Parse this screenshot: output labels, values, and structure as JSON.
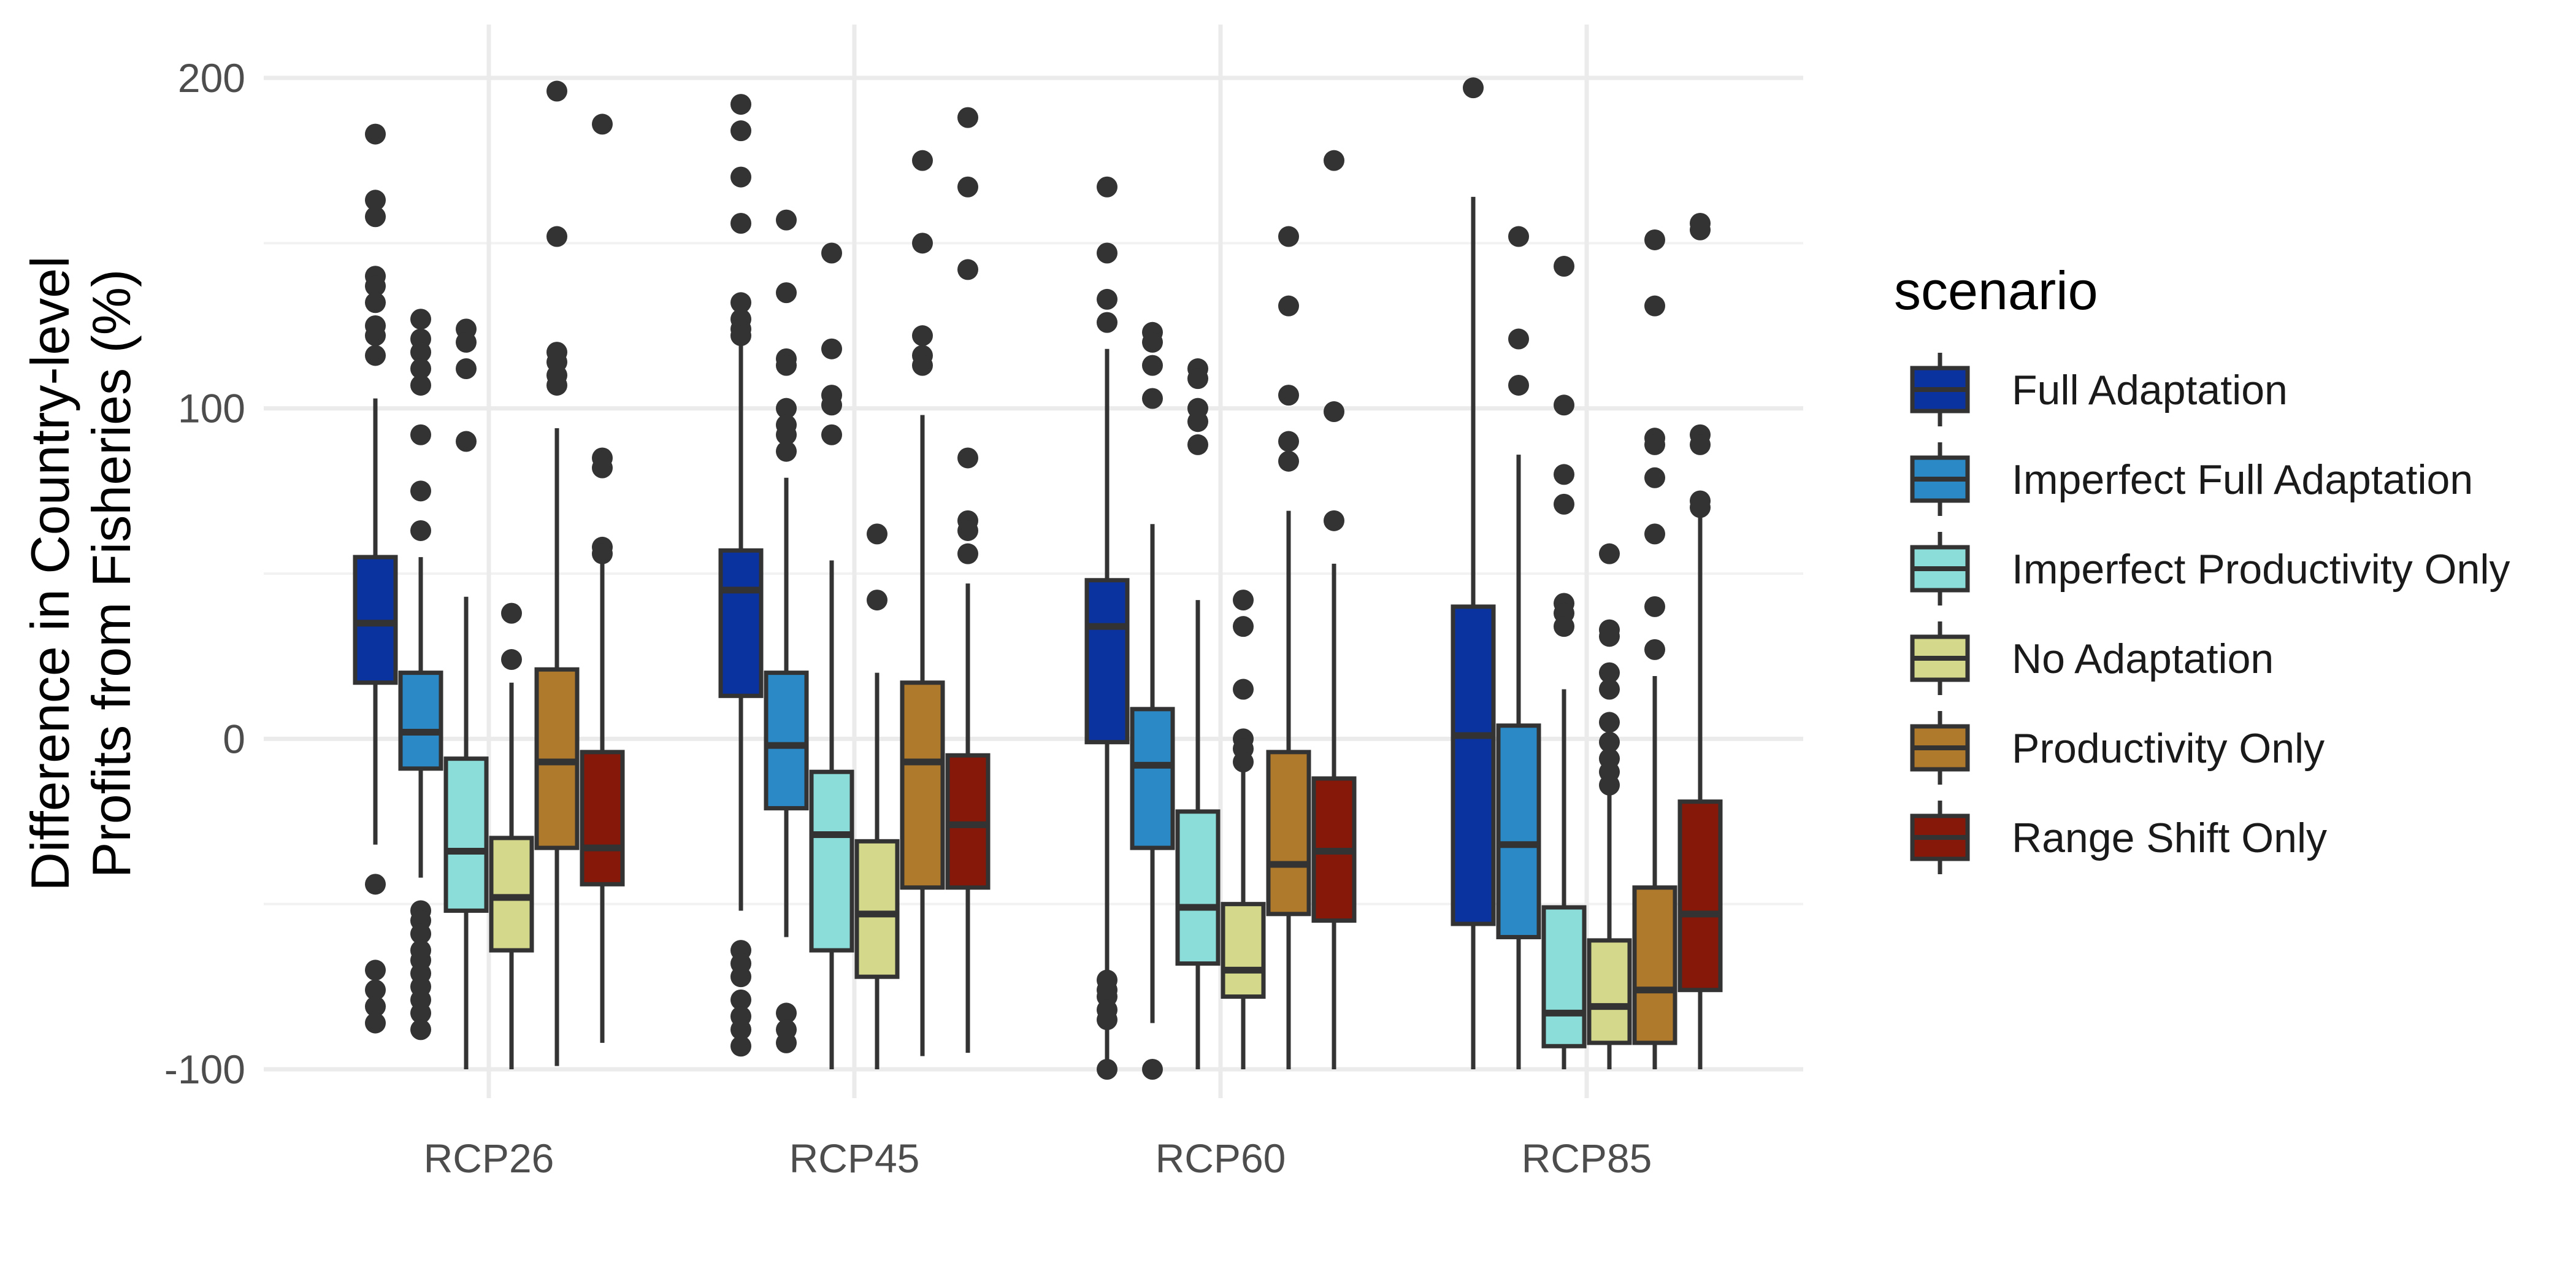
{
  "chart_data": {
    "type": "box",
    "ylabel_lines": [
      "Difference in Country-level",
      "Profits from Fisheries (%)"
    ],
    "xlabel": "",
    "ylim": [
      -100,
      200
    ],
    "yticks": [
      200,
      100,
      0,
      -100
    ],
    "ytick_labels": [
      "200",
      "100",
      "0",
      "-100"
    ],
    "categories": [
      "RCP26",
      "RCP45",
      "RCP60",
      "RCP85"
    ],
    "legend": {
      "title": "scenario",
      "position": "right",
      "items": [
        {
          "label": "Full Adaptation",
          "color": "#0B33A0"
        },
        {
          "label": "Imperfect Full Adaptation",
          "color": "#2B89C6"
        },
        {
          "label": "Imperfect Productivity Only",
          "color": "#8BDDD9"
        },
        {
          "label": "No Adaptation",
          "color": "#D4D88A"
        },
        {
          "label": "Productivity Only",
          "color": "#B07A2C"
        },
        {
          "label": "Range Shift Only",
          "color": "#851808"
        }
      ]
    },
    "grid": true,
    "series": [
      {
        "color": "#0B33A0",
        "boxes": [
          {
            "lo": -32,
            "q1": 17,
            "med": 35,
            "q3": 55,
            "hi": 103,
            "outliers": [
              183,
              163,
              158,
              140,
              137,
              132,
              125,
              122,
              116,
              -44,
              -70,
              -76,
              -81,
              -86
            ]
          },
          {
            "lo": -52,
            "q1": 13,
            "med": 45,
            "q3": 57,
            "hi": 129,
            "outliers": [
              192,
              184,
              170,
              156,
              132,
              127,
              124,
              122,
              -64,
              -68,
              -72,
              -79,
              -84,
              -88,
              -93
            ]
          },
          {
            "lo": -100,
            "q1": -1,
            "med": 34,
            "q3": 48,
            "hi": 118,
            "outliers": [
              167,
              147,
              133,
              126,
              -73,
              -76,
              -78,
              -82,
              -85,
              -100
            ]
          },
          {
            "lo": -100,
            "q1": -56,
            "med": 1,
            "q3": 40,
            "hi": 164,
            "outliers": [
              197
            ]
          }
        ]
      },
      {
        "color": "#2B89C6",
        "boxes": [
          {
            "lo": -42,
            "q1": -9,
            "med": 2,
            "q3": 20,
            "hi": 55,
            "outliers": [
              127,
              121,
              117,
              112,
              107,
              92,
              75,
              63,
              -52,
              -55,
              -59,
              -64,
              -67,
              -71,
              -75,
              -79,
              -83,
              -88
            ]
          },
          {
            "lo": -60,
            "q1": -21,
            "med": -2,
            "q3": 20,
            "hi": 79,
            "outliers": [
              157,
              135,
              115,
              113,
              100,
              95,
              92,
              87,
              -83,
              -88,
              -92
            ]
          },
          {
            "lo": -86,
            "q1": -33,
            "med": -8,
            "q3": 9,
            "hi": 65,
            "outliers": [
              123,
              120,
              113,
              103,
              -100
            ]
          },
          {
            "lo": -100,
            "q1": -60,
            "med": -32,
            "q3": 4,
            "hi": 86,
            "outliers": [
              152,
              121,
              107
            ]
          }
        ]
      },
      {
        "color": "#8BDDD9",
        "boxes": [
          {
            "lo": -100,
            "q1": -52,
            "med": -34,
            "q3": -6,
            "hi": 43,
            "outliers": [
              124,
              120,
              112,
              90
            ]
          },
          {
            "lo": -100,
            "q1": -64,
            "med": -29,
            "q3": -10,
            "hi": 54,
            "outliers": [
              147,
              118,
              104,
              101,
              92
            ]
          },
          {
            "lo": -100,
            "q1": -68,
            "med": -51,
            "q3": -22,
            "hi": 42,
            "outliers": [
              112,
              109,
              100,
              96,
              89
            ]
          },
          {
            "lo": -100,
            "q1": -93,
            "med": -83,
            "q3": -51,
            "hi": 15,
            "outliers": [
              143,
              101,
              80,
              71,
              41,
              38,
              34
            ]
          }
        ]
      },
      {
        "color": "#D4D88A",
        "boxes": [
          {
            "lo": -100,
            "q1": -64,
            "med": -48,
            "q3": -30,
            "hi": 17,
            "outliers": [
              38,
              24
            ]
          },
          {
            "lo": -100,
            "q1": -72,
            "med": -53,
            "q3": -31,
            "hi": 20,
            "outliers": [
              62,
              42
            ]
          },
          {
            "lo": -100,
            "q1": -78,
            "med": -70,
            "q3": -50,
            "hi": -10,
            "outliers": [
              42,
              34,
              15,
              0,
              -3,
              -7
            ]
          },
          {
            "lo": -100,
            "q1": -92,
            "med": -81,
            "q3": -61,
            "hi": -17,
            "outliers": [
              56,
              33,
              31,
              20,
              15,
              5,
              -1,
              -6,
              -10,
              -14
            ]
          }
        ]
      },
      {
        "color": "#B07A2C",
        "boxes": [
          {
            "lo": -99,
            "q1": -33,
            "med": -7,
            "q3": 21,
            "hi": 94,
            "outliers": [
              196,
              152,
              117,
              114,
              110,
              107
            ]
          },
          {
            "lo": -96,
            "q1": -45,
            "med": -7,
            "q3": 17,
            "hi": 98,
            "outliers": [
              175,
              150,
              122,
              116,
              113
            ]
          },
          {
            "lo": -100,
            "q1": -53,
            "med": -38,
            "q3": -4,
            "hi": 69,
            "outliers": [
              152,
              131,
              104,
              90,
              84
            ]
          },
          {
            "lo": -100,
            "q1": -92,
            "med": -76,
            "q3": -45,
            "hi": 19,
            "outliers": [
              151,
              131,
              91,
              89,
              79,
              62,
              40,
              27
            ]
          }
        ]
      },
      {
        "color": "#851808",
        "boxes": [
          {
            "lo": -92,
            "q1": -44,
            "med": -33,
            "q3": -4,
            "hi": 53,
            "outliers": [
              186,
              85,
              82,
              58,
              56
            ]
          },
          {
            "lo": -95,
            "q1": -45,
            "med": -26,
            "q3": -5,
            "hi": 47,
            "outliers": [
              188,
              167,
              142,
              85,
              66,
              63,
              56
            ]
          },
          {
            "lo": -100,
            "q1": -55,
            "med": -34,
            "q3": -12,
            "hi": 53,
            "outliers": [
              175,
              99,
              66
            ]
          },
          {
            "lo": -100,
            "q1": -76,
            "med": -53,
            "q3": -19,
            "hi": 67,
            "outliers": [
              156,
              154,
              92,
              89,
              72,
              70
            ]
          }
        ]
      }
    ]
  }
}
